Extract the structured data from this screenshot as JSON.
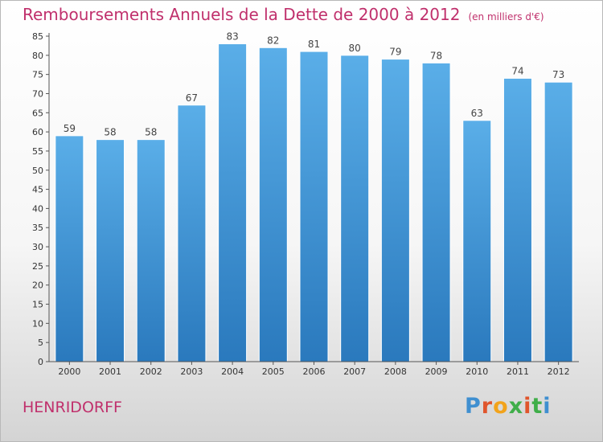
{
  "title": "Remboursements Annuels de la Dette de 2000 à 2012",
  "unit": "(en milliers d'€)",
  "city": "HENRIDORFF",
  "logo": {
    "letters": [
      "P",
      "r",
      "o",
      "x",
      "i",
      "t",
      "i"
    ],
    "colors": [
      "#3f8fd0",
      "#e0552c",
      "#f2a31b",
      "#3fae49",
      "#e0552c",
      "#3fae49",
      "#3f8fd0"
    ]
  },
  "colors": {
    "title": "#c0306c",
    "bar_top": "#5aaee8",
    "bar_bottom": "#2a79bd"
  },
  "chart_data": {
    "type": "bar",
    "categories": [
      "2000",
      "2001",
      "2002",
      "2003",
      "2004",
      "2005",
      "2006",
      "2007",
      "2008",
      "2009",
      "2010",
      "2011",
      "2012"
    ],
    "values": [
      59,
      58,
      58,
      67,
      83,
      82,
      81,
      80,
      79,
      78,
      63,
      74,
      73
    ],
    "ylim": [
      0,
      85
    ],
    "yticks": [
      0,
      5,
      10,
      15,
      20,
      25,
      30,
      35,
      40,
      45,
      50,
      55,
      60,
      65,
      70,
      75,
      80,
      85
    ],
    "grid": false
  }
}
